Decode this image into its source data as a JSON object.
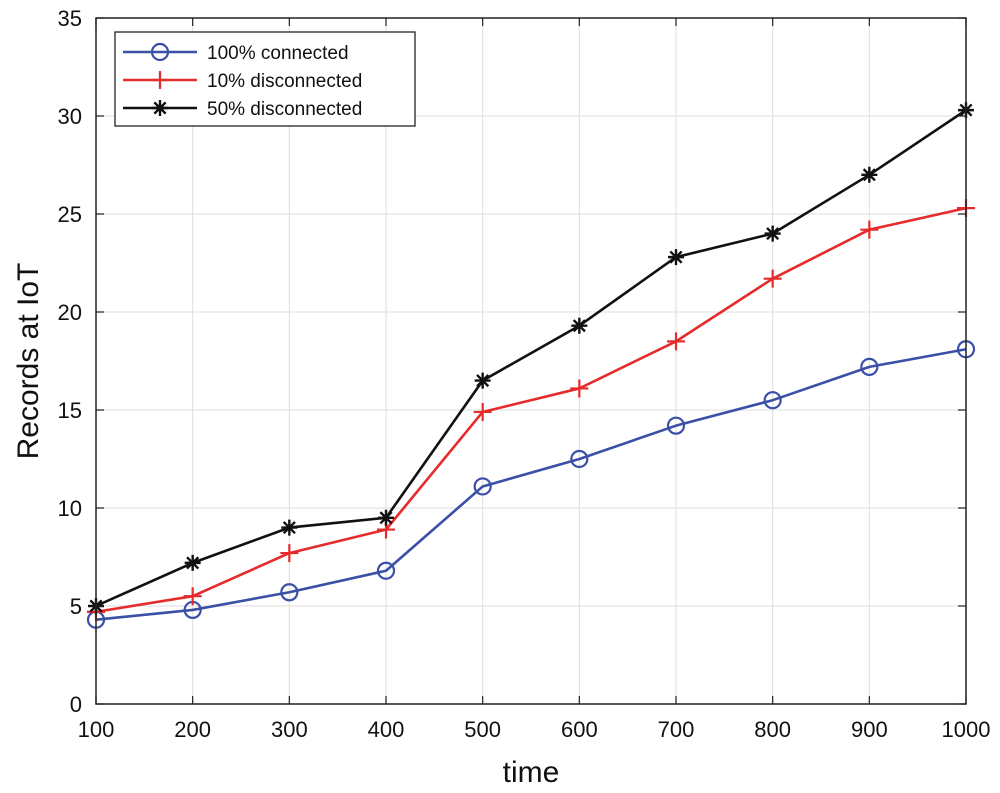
{
  "chart_data": {
    "type": "line",
    "title": "",
    "xlabel": "time",
    "ylabel": "Records at IoT",
    "x": [
      100,
      200,
      300,
      400,
      500,
      600,
      700,
      800,
      900,
      1000
    ],
    "xlim": [
      100,
      1000
    ],
    "ylim": [
      0,
      35
    ],
    "xticks": [
      "100",
      "200",
      "300",
      "400",
      "500",
      "600",
      "700",
      "800",
      "900",
      "1000"
    ],
    "yticks": [
      "0",
      "5",
      "10",
      "15",
      "20",
      "25",
      "30",
      "35"
    ],
    "grid": true,
    "legend_position": "top-left",
    "series": [
      {
        "name": "100% connected",
        "color": "#3a4fa6",
        "marker": "circle",
        "values": [
          4.3,
          4.8,
          5.7,
          6.8,
          11.1,
          12.5,
          14.2,
          15.5,
          17.2,
          18.1
        ]
      },
      {
        "name": "10% disconnected",
        "color": "#e52b2b",
        "marker": "plus",
        "values": [
          4.7,
          5.5,
          7.7,
          8.9,
          14.9,
          16.1,
          18.5,
          21.7,
          24.2,
          25.3
        ]
      },
      {
        "name": "50% disconnected",
        "color": "#111111",
        "marker": "star",
        "values": [
          5.0,
          7.2,
          9.0,
          9.5,
          16.5,
          19.3,
          22.8,
          24.0,
          27.0,
          30.3
        ]
      }
    ]
  }
}
